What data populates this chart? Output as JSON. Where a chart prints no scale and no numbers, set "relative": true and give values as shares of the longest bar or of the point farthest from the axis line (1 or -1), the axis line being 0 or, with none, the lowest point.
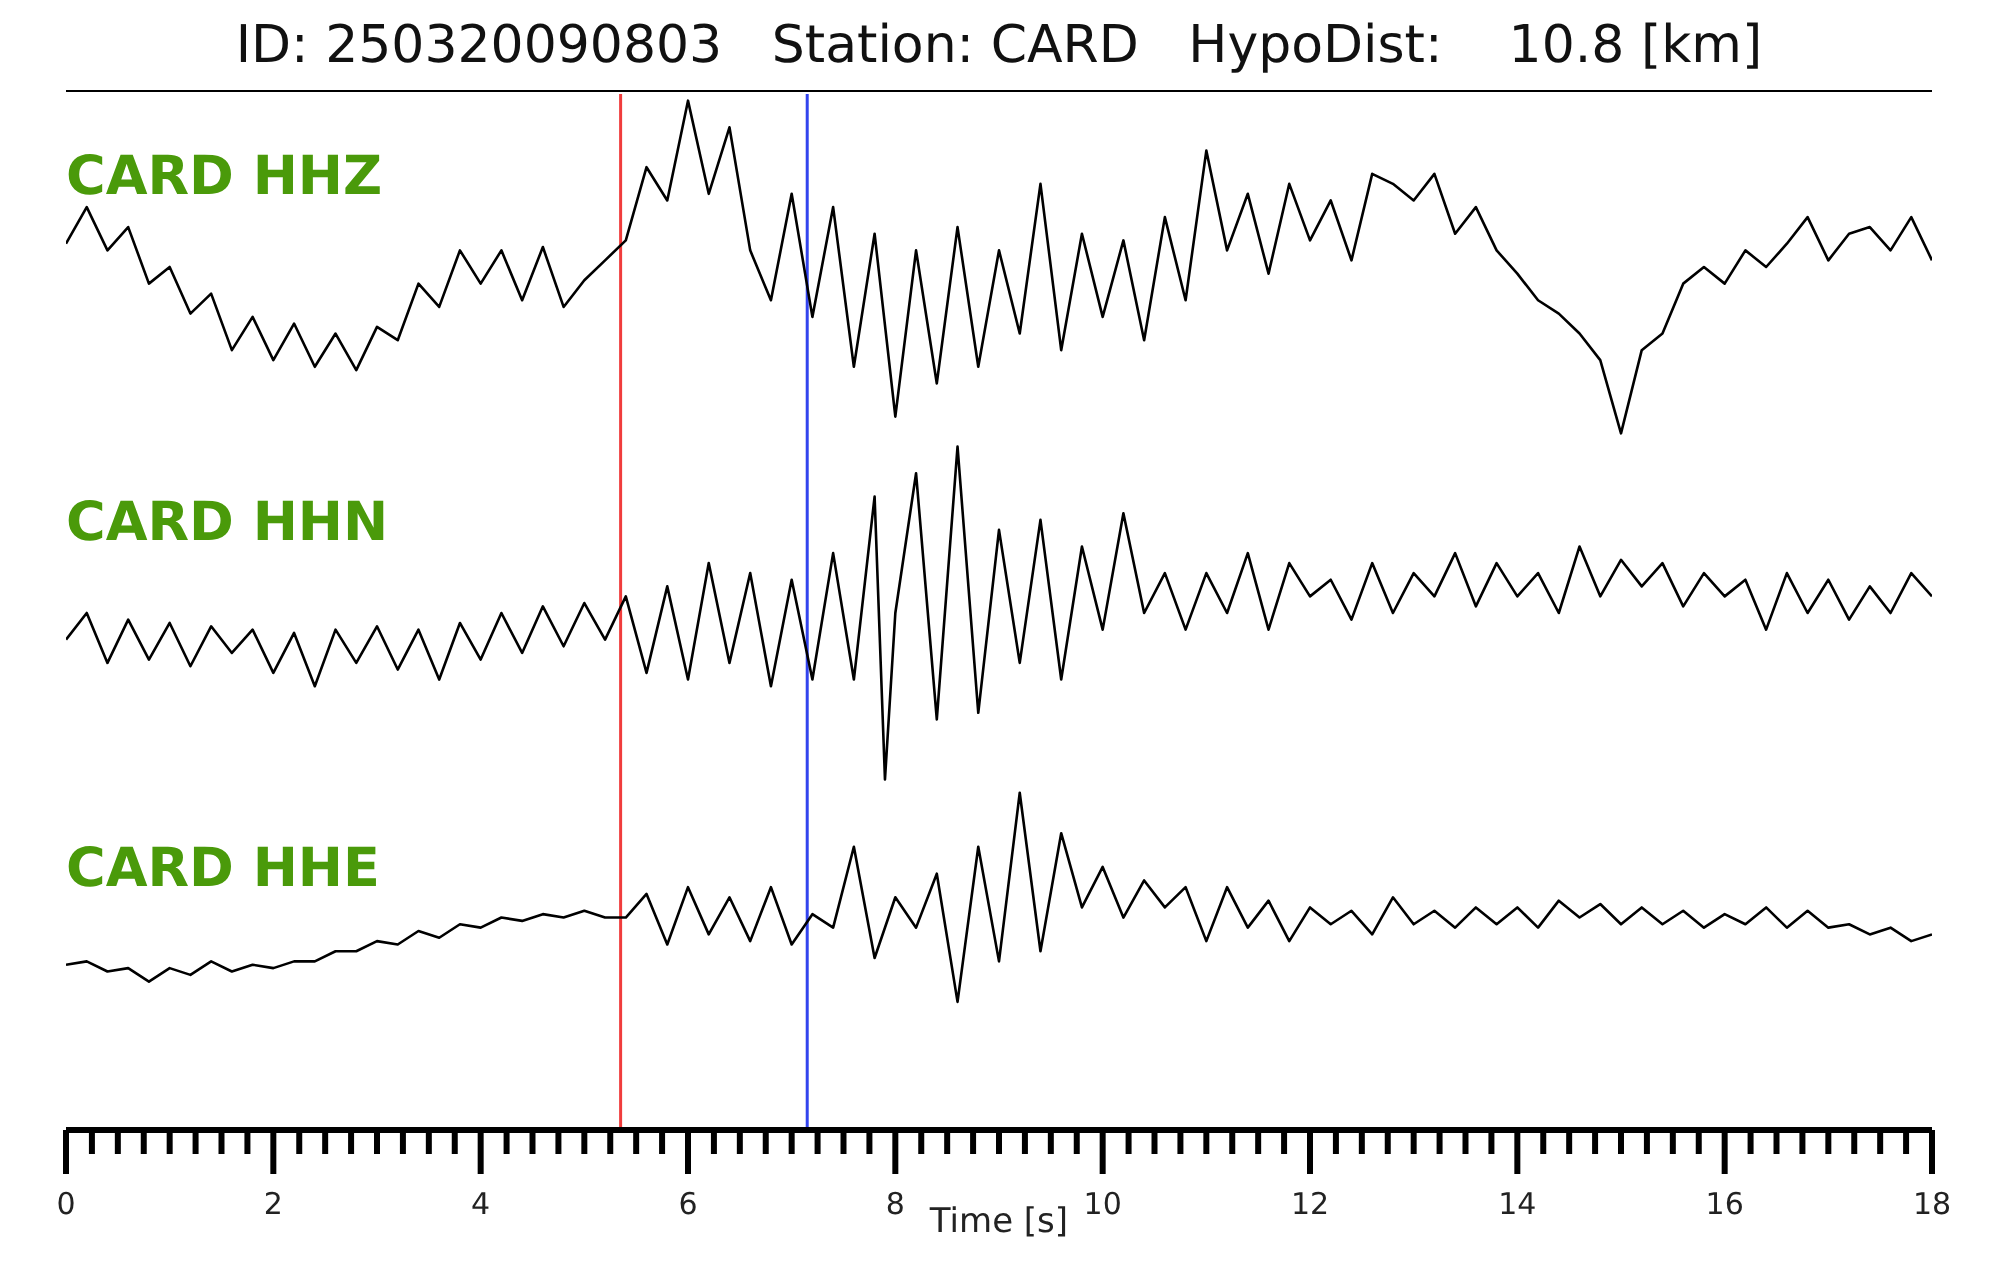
{
  "chart_data": [
    {
      "type": "line",
      "title": "ID: 250320090803   Station: CARD   HypoDist:    10.8 [km]",
      "relative": true,
      "xlim": [
        0,
        18
      ],
      "tick_labels": false,
      "ref_lines": [
        {
          "axis": "x",
          "value": 5.35,
          "color": "#f03c3c"
        },
        {
          "axis": "x",
          "value": 7.15,
          "color": "#3344ee"
        }
      ],
      "series": [
        {
          "name": "CARD HHZ",
          "color": "#000000",
          "x": [
            0,
            0.2,
            0.4,
            0.6,
            0.8,
            1,
            1.2,
            1.4,
            1.6,
            1.8,
            2,
            2.2,
            2.4,
            2.6,
            2.8,
            3,
            3.2,
            3.4,
            3.6,
            3.8,
            4,
            4.2,
            4.4,
            4.6,
            4.8,
            5,
            5.2,
            5.4,
            5.6,
            5.8,
            6,
            6.2,
            6.4,
            6.6,
            6.8,
            7,
            7.2,
            7.4,
            7.6,
            7.8,
            8,
            8.2,
            8.4,
            8.6,
            8.8,
            9,
            9.2,
            9.4,
            9.6,
            9.8,
            10,
            10.2,
            10.4,
            10.6,
            10.8,
            11,
            11.2,
            11.4,
            11.6,
            11.8,
            12,
            12.2,
            12.4,
            12.6,
            12.8,
            13,
            13.2,
            13.4,
            13.6,
            13.8,
            14,
            14.2,
            14.4,
            14.6,
            14.8,
            15,
            15.2,
            15.4,
            15.6,
            15.8,
            16,
            16.2,
            16.4,
            16.6,
            16.8,
            17,
            17.2,
            17.4,
            17.6,
            17.8,
            18
          ],
          "values": [
            0.57,
            0.68,
            0.55,
            0.62,
            0.45,
            0.5,
            0.36,
            0.42,
            0.25,
            0.35,
            0.22,
            0.33,
            0.2,
            0.3,
            0.19,
            0.32,
            0.28,
            0.45,
            0.38,
            0.55,
            0.45,
            0.55,
            0.4,
            0.56,
            0.38,
            0.46,
            0.52,
            0.58,
            0.8,
            0.7,
            1,
            0.72,
            0.92,
            0.55,
            0.4,
            0.72,
            0.35,
            0.68,
            0.2,
            0.6,
            0.05,
            0.55,
            0.15,
            0.62,
            0.2,
            0.55,
            0.3,
            0.75,
            0.25,
            0.6,
            0.35,
            0.58,
            0.28,
            0.65,
            0.4,
            0.85,
            0.55,
            0.72,
            0.48,
            0.75,
            0.58,
            0.7,
            0.52,
            0.78,
            0.75,
            0.7,
            0.78,
            0.6,
            0.68,
            0.55,
            0.48,
            0.4,
            0.36,
            0.3,
            0.22,
            0,
            0.25,
            0.3,
            0.45,
            0.5,
            0.45,
            0.55,
            0.5,
            0.57,
            0.65,
            0.52,
            0.6,
            0.62,
            0.55,
            0.65,
            0.52
          ]
        }
      ]
    },
    {
      "type": "line",
      "relative": true,
      "xlim": [
        0,
        18
      ],
      "tick_labels": false,
      "ref_lines": [
        {
          "axis": "x",
          "value": 5.35,
          "color": "#f03c3c"
        },
        {
          "axis": "x",
          "value": 7.15,
          "color": "#3344ee"
        }
      ],
      "series": [
        {
          "name": "CARD HHN",
          "color": "#000000",
          "x": [
            0,
            0.2,
            0.4,
            0.6,
            0.8,
            1,
            1.2,
            1.4,
            1.6,
            1.8,
            2,
            2.2,
            2.4,
            2.6,
            2.8,
            3,
            3.2,
            3.4,
            3.6,
            3.8,
            4,
            4.2,
            4.4,
            4.6,
            4.8,
            5,
            5.2,
            5.4,
            5.6,
            5.8,
            6,
            6.2,
            6.4,
            6.6,
            6.8,
            7,
            7.2,
            7.4,
            7.6,
            7.8,
            7.9,
            8,
            8.2,
            8.4,
            8.6,
            8.8,
            9,
            9.2,
            9.4,
            9.6,
            9.8,
            10,
            10.2,
            10.4,
            10.6,
            10.8,
            11,
            11.2,
            11.4,
            11.6,
            11.8,
            12,
            12.2,
            12.4,
            12.6,
            12.8,
            13,
            13.2,
            13.4,
            13.6,
            13.8,
            14,
            14.2,
            14.4,
            14.6,
            14.8,
            15,
            15.2,
            15.4,
            15.6,
            15.8,
            16,
            16.2,
            16.4,
            16.6,
            16.8,
            17,
            17.2,
            17.4,
            17.6,
            17.8,
            18
          ],
          "values": [
            0.42,
            0.5,
            0.35,
            0.48,
            0.36,
            0.47,
            0.34,
            0.46,
            0.38,
            0.45,
            0.32,
            0.44,
            0.28,
            0.45,
            0.35,
            0.46,
            0.33,
            0.45,
            0.3,
            0.47,
            0.36,
            0.5,
            0.38,
            0.52,
            0.4,
            0.53,
            0.42,
            0.55,
            0.32,
            0.58,
            0.3,
            0.65,
            0.35,
            0.62,
            0.28,
            0.6,
            0.3,
            0.68,
            0.3,
            0.85,
            0,
            0.5,
            0.92,
            0.18,
            1,
            0.2,
            0.75,
            0.35,
            0.78,
            0.3,
            0.7,
            0.45,
            0.8,
            0.5,
            0.62,
            0.45,
            0.62,
            0.5,
            0.68,
            0.45,
            0.65,
            0.55,
            0.6,
            0.48,
            0.65,
            0.5,
            0.62,
            0.55,
            0.68,
            0.52,
            0.65,
            0.55,
            0.62,
            0.5,
            0.7,
            0.55,
            0.66,
            0.58,
            0.65,
            0.52,
            0.62,
            0.55,
            0.6,
            0.45,
            0.62,
            0.5,
            0.6,
            0.48,
            0.58,
            0.5,
            0.62,
            0.55
          ]
        }
      ]
    },
    {
      "type": "line",
      "relative": true,
      "xlim": [
        0,
        18
      ],
      "tick_labels": "x",
      "xlabel": "Time [s]",
      "xticks": [
        0,
        {
          "value": 0.25,
          "label": null
        },
        {
          "value": 0.5,
          "label": null
        },
        {
          "value": 0.75,
          "label": null
        },
        {
          "value": 1,
          "label": null
        },
        {
          "value": 1.25,
          "label": null
        },
        {
          "value": 1.5,
          "label": null
        },
        {
          "value": 1.75,
          "label": null
        },
        2,
        {
          "value": 2.25,
          "label": null
        },
        {
          "value": 2.5,
          "label": null
        },
        {
          "value": 2.75,
          "label": null
        },
        {
          "value": 3,
          "label": null
        },
        {
          "value": 3.25,
          "label": null
        },
        {
          "value": 3.5,
          "label": null
        },
        {
          "value": 3.75,
          "label": null
        },
        4,
        {
          "value": 4.25,
          "label": null
        },
        {
          "value": 4.5,
          "label": null
        },
        {
          "value": 4.75,
          "label": null
        },
        {
          "value": 5,
          "label": null
        },
        {
          "value": 5.25,
          "label": null
        },
        {
          "value": 5.5,
          "label": null
        },
        {
          "value": 5.75,
          "label": null
        },
        6,
        {
          "value": 6.25,
          "label": null
        },
        {
          "value": 6.5,
          "label": null
        },
        {
          "value": 6.75,
          "label": null
        },
        {
          "value": 7,
          "label": null
        },
        {
          "value": 7.25,
          "label": null
        },
        {
          "value": 7.5,
          "label": null
        },
        {
          "value": 7.75,
          "label": null
        },
        8,
        {
          "value": 8.25,
          "label": null
        },
        {
          "value": 8.5,
          "label": null
        },
        {
          "value": 8.75,
          "label": null
        },
        {
          "value": 9,
          "label": null
        },
        {
          "value": 9.25,
          "label": null
        },
        {
          "value": 9.5,
          "label": null
        },
        {
          "value": 9.75,
          "label": null
        },
        10,
        {
          "value": 10.25,
          "label": null
        },
        {
          "value": 10.5,
          "label": null
        },
        {
          "value": 10.75,
          "label": null
        },
        {
          "value": 11,
          "label": null
        },
        {
          "value": 11.25,
          "label": null
        },
        {
          "value": 11.5,
          "label": null
        },
        {
          "value": 11.75,
          "label": null
        },
        12,
        {
          "value": 12.25,
          "label": null
        },
        {
          "value": 12.5,
          "label": null
        },
        {
          "value": 12.75,
          "label": null
        },
        {
          "value": 13,
          "label": null
        },
        {
          "value": 13.25,
          "label": null
        },
        {
          "value": 13.5,
          "label": null
        },
        {
          "value": 13.75,
          "label": null
        },
        14,
        {
          "value": 14.25,
          "label": null
        },
        {
          "value": 14.5,
          "label": null
        },
        {
          "value": 14.75,
          "label": null
        },
        {
          "value": 15,
          "label": null
        },
        {
          "value": 15.25,
          "label": null
        },
        {
          "value": 15.5,
          "label": null
        },
        {
          "value": 15.75,
          "label": null
        },
        16,
        {
          "value": 16.25,
          "label": null
        },
        {
          "value": 16.5,
          "label": null
        },
        {
          "value": 16.75,
          "label": null
        },
        {
          "value": 17,
          "label": null
        },
        {
          "value": 17.25,
          "label": null
        },
        {
          "value": 17.5,
          "label": null
        },
        {
          "value": 17.75,
          "label": null
        },
        18
      ],
      "ref_lines": [
        {
          "axis": "x",
          "value": 5.35,
          "color": "#f03c3c"
        },
        {
          "axis": "x",
          "value": 7.15,
          "color": "#3344ee"
        }
      ],
      "series": [
        {
          "name": "CARD HHE",
          "color": "#000000",
          "x": [
            0,
            0.2,
            0.4,
            0.6,
            0.8,
            1,
            1.2,
            1.4,
            1.6,
            1.8,
            2,
            2.2,
            2.4,
            2.6,
            2.8,
            3,
            3.2,
            3.4,
            3.6,
            3.8,
            4,
            4.2,
            4.4,
            4.6,
            4.8,
            5,
            5.2,
            5.4,
            5.6,
            5.8,
            6,
            6.2,
            6.4,
            6.6,
            6.8,
            7,
            7.2,
            7.4,
            7.6,
            7.8,
            8,
            8.2,
            8.4,
            8.6,
            8.8,
            9,
            9.2,
            9.4,
            9.6,
            9.8,
            10,
            10.2,
            10.4,
            10.6,
            10.8,
            11,
            11.2,
            11.4,
            11.6,
            11.8,
            12,
            12.2,
            12.4,
            12.6,
            12.8,
            13,
            13.2,
            13.4,
            13.6,
            13.8,
            14,
            14.2,
            14.4,
            14.6,
            14.8,
            15,
            15.2,
            15.4,
            15.6,
            15.8,
            16,
            16.2,
            16.4,
            16.6,
            16.8,
            17,
            17.2,
            17.4,
            17.6,
            17.8,
            18
          ],
          "values": [
            0.49,
            0.5,
            0.47,
            0.48,
            0.44,
            0.48,
            0.46,
            0.5,
            0.47,
            0.49,
            0.48,
            0.5,
            0.5,
            0.53,
            0.53,
            0.56,
            0.55,
            0.59,
            0.57,
            0.61,
            0.6,
            0.63,
            0.62,
            0.64,
            0.63,
            0.65,
            0.63,
            0.63,
            0.7,
            0.55,
            0.72,
            0.58,
            0.69,
            0.56,
            0.72,
            0.55,
            0.64,
            0.6,
            0.84,
            0.51,
            0.69,
            0.6,
            0.76,
            0.38,
            0.84,
            0.5,
            1,
            0.53,
            0.88,
            0.66,
            0.78,
            0.63,
            0.74,
            0.66,
            0.72,
            0.56,
            0.72,
            0.6,
            0.68,
            0.56,
            0.66,
            0.61,
            0.65,
            0.58,
            0.69,
            0.61,
            0.65,
            0.6,
            0.66,
            0.61,
            0.66,
            0.6,
            0.68,
            0.63,
            0.67,
            0.61,
            0.66,
            0.61,
            0.65,
            0.6,
            0.64,
            0.61,
            0.66,
            0.6,
            0.65,
            0.6,
            0.61,
            0.58,
            0.6,
            0.56,
            0.58
          ]
        }
      ]
    }
  ]
}
